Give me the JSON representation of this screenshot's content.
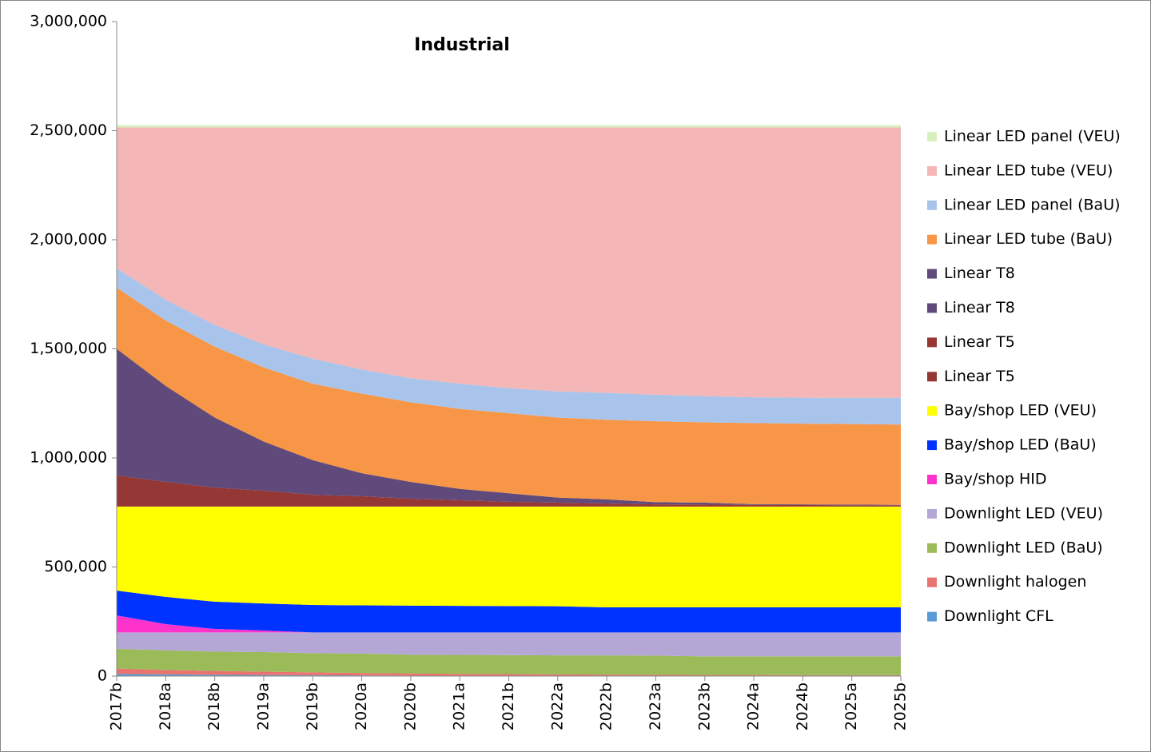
{
  "chart_data": {
    "type": "stacked-area",
    "title": "Industrial",
    "categories": [
      "2017b",
      "2018a",
      "2018b",
      "2019a",
      "2019b",
      "2020a",
      "2020b",
      "2021a",
      "2021b",
      "2022a",
      "2022b",
      "2023a",
      "2023b",
      "2024a",
      "2024b",
      "2025a",
      "2025b"
    ],
    "ylim": [
      0,
      3000000
    ],
    "yticks": [
      0,
      {
        "value": 500000,
        "label": "500,000"
      },
      {
        "value": 1000000,
        "label": "1,000,000"
      },
      {
        "value": 1500000,
        "label": "1,500,000"
      },
      {
        "value": 2000000,
        "label": "2,000,000"
      },
      {
        "value": 2500000,
        "label": "2,500,000"
      },
      {
        "value": 3000000,
        "label": "3,000,000"
      }
    ],
    "legend": "right",
    "series": [
      {
        "name": "Downlight CFL",
        "color": "#5b9bd5",
        "values": [
          10000,
          8000,
          6000,
          5000,
          4000,
          3000,
          2000,
          2000,
          1000,
          1000,
          1000,
          1000,
          1000,
          1000,
          1000,
          1000,
          1000
        ]
      },
      {
        "name": "Downlight halogen",
        "color": "#e8736f",
        "values": [
          25000,
          20000,
          18000,
          15000,
          13000,
          11000,
          10000,
          8000,
          8000,
          7000,
          6000,
          5000,
          4000,
          4000,
          3000,
          3000,
          3000
        ]
      },
      {
        "name": "Downlight LED (BaU)",
        "color": "#9bbb59",
        "values": [
          90000,
          90000,
          88000,
          90000,
          88000,
          89000,
          86000,
          87000,
          87000,
          87000,
          88000,
          88000,
          85000,
          85000,
          86000,
          86000,
          86000
        ]
      },
      {
        "name": "Downlight LED (VEU)",
        "color": "#b4a7d6",
        "values": [
          75000,
          82000,
          88000,
          90000,
          95000,
          97000,
          102000,
          103000,
          104000,
          105000,
          105000,
          106000,
          110000,
          110000,
          110000,
          110000,
          110000
        ]
      },
      {
        "name": "Bay/shop HID",
        "color": "#ff33cc",
        "values": [
          78000,
          38000,
          16000,
          9000,
          0,
          0,
          0,
          0,
          0,
          0,
          0,
          0,
          0,
          0,
          0,
          0,
          0
        ]
      },
      {
        "name": "Bay/shop LED (BaU)",
        "color": "#0033ff",
        "values": [
          114000,
          125000,
          125000,
          124000,
          126000,
          124000,
          123000,
          122000,
          121000,
          120000,
          115000,
          115000,
          115000,
          115000,
          115000,
          115000,
          115000
        ]
      },
      {
        "name": "Bay/shop LED (VEU)",
        "color": "#ffff00",
        "values": [
          385000,
          414000,
          436000,
          444000,
          451000,
          453000,
          454000,
          455000,
          456000,
          457000,
          462000,
          462000,
          462000,
          462000,
          462000,
          462000,
          462000
        ]
      },
      {
        "name": "Linear T5",
        "color": "#953735",
        "values": [
          143000,
          113000,
          87000,
          73000,
          54000,
          47000,
          36000,
          29000,
          22000,
          18000,
          14000,
          10000,
          9000,
          8000,
          7000,
          6000,
          6000
        ]
      },
      {
        "name": "Linear T5",
        "color": "#953735",
        "values": [
          0,
          0,
          0,
          0,
          0,
          0,
          0,
          0,
          0,
          0,
          0,
          0,
          0,
          0,
          0,
          0,
          0
        ]
      },
      {
        "name": "Linear T8",
        "color": "#604a7b",
        "values": [
          580000,
          440000,
          321000,
          225000,
          159000,
          106000,
          77000,
          52000,
          39000,
          23000,
          19000,
          10000,
          9000,
          3000,
          3000,
          3000,
          2000
        ]
      },
      {
        "name": "Linear T8",
        "color": "#604a7b",
        "values": [
          0,
          0,
          0,
          0,
          0,
          0,
          0,
          0,
          0,
          0,
          0,
          0,
          0,
          0,
          0,
          0,
          0
        ]
      },
      {
        "name": "Linear LED tube (BaU)",
        "color": "#f79646",
        "values": [
          280000,
          300000,
          325000,
          340000,
          350000,
          365000,
          365000,
          367000,
          367000,
          367000,
          365000,
          371000,
          368000,
          372000,
          370000,
          369000,
          368000
        ]
      },
      {
        "name": "Linear LED panel (BaU)",
        "color": "#a9c4eb",
        "values": [
          90000,
          95000,
          100000,
          105000,
          115000,
          110000,
          110000,
          115000,
          115000,
          120000,
          123000,
          122000,
          120000,
          118000,
          119000,
          120000,
          122000
        ]
      },
      {
        "name": "Linear LED tube (VEU)",
        "color": "#f4b6b6",
        "values": [
          645000,
          790000,
          905000,
          995000,
          1060000,
          1110000,
          1150000,
          1175000,
          1195000,
          1210000,
          1217000,
          1225000,
          1232000,
          1237000,
          1239000,
          1240000,
          1240000
        ]
      },
      {
        "name": "Linear LED panel (VEU)",
        "color": "#d8f0c0",
        "values": [
          10000,
          10000,
          10000,
          10000,
          10000,
          10000,
          10000,
          10000,
          10000,
          10000,
          10000,
          10000,
          10000,
          10000,
          10000,
          10000,
          10000
        ]
      }
    ]
  }
}
